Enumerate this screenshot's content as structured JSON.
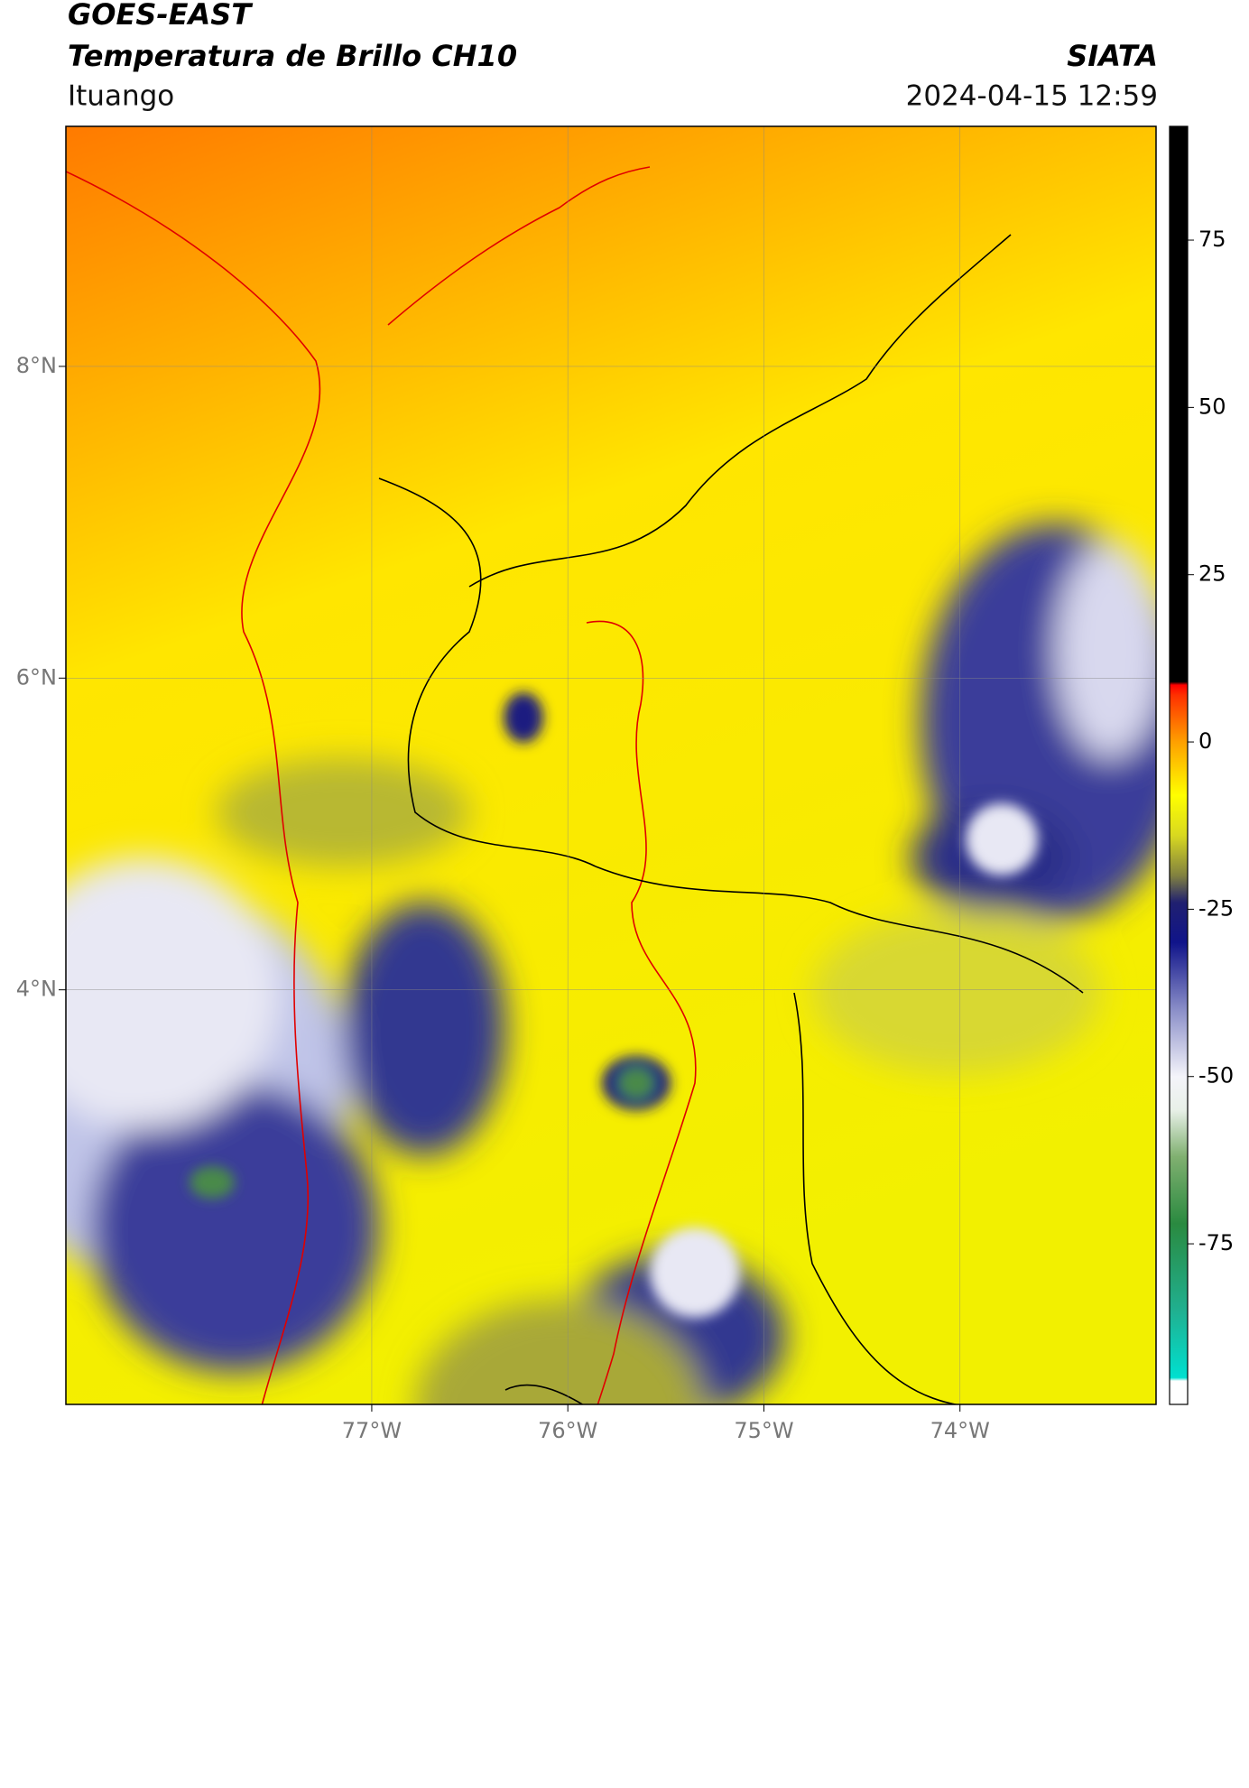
{
  "header": {
    "title": "GOES-EAST",
    "subtitle": "Temperatura de Brillo CH10",
    "source": "SIATA",
    "location": "Ituango",
    "datetime": "2024-04-15 12:59"
  },
  "map": {
    "xlim": [
      -78.56,
      -73.0
    ],
    "ylim": [
      1.34,
      9.54
    ],
    "xticks": [
      {
        "value": -77,
        "label": "77°W"
      },
      {
        "value": -76,
        "label": "76°W"
      },
      {
        "value": -75,
        "label": "75°W"
      },
      {
        "value": -74,
        "label": "74°W"
      }
    ],
    "yticks": [
      {
        "value": 8,
        "label": "8°N"
      },
      {
        "value": 6,
        "label": "6°N"
      },
      {
        "value": 4,
        "label": "4°N"
      }
    ],
    "grid": true
  },
  "colorbar": {
    "lim": [
      -99,
      92
    ],
    "ticks": [
      75,
      50,
      25,
      0,
      -25,
      -50,
      -75
    ]
  }
}
